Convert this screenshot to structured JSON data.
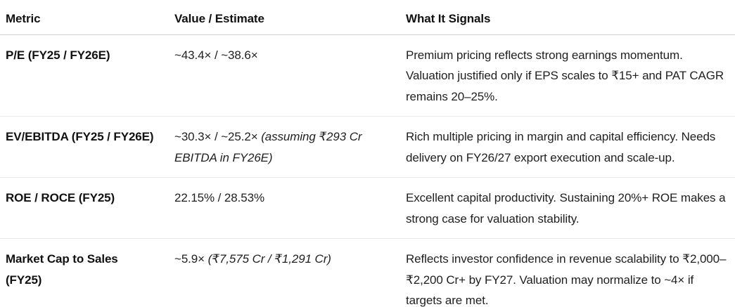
{
  "table": {
    "headers": {
      "metric": "Metric",
      "value": "Value / Estimate",
      "signal": "What It Signals"
    },
    "rows": [
      {
        "metric": "P/E (FY25 / FY26E)",
        "value": "~43.4× / ~38.6×",
        "value_note": "",
        "signal": "Premium pricing reflects strong earnings momentum. Valuation justified only if EPS scales to ₹15+ and PAT CAGR remains 20–25%."
      },
      {
        "metric": "EV/EBITDA (FY25 / FY26E)",
        "value": "~30.3× / ~25.2× ",
        "value_note": "(assuming ₹293 Cr EBITDA in FY26E)",
        "signal": "Rich multiple pricing in margin and capital efficiency. Needs delivery on FY26/27 export execution and scale-up."
      },
      {
        "metric": "ROE / ROCE (FY25)",
        "value": "22.15% / 28.53%",
        "value_note": "",
        "signal": "Excellent capital productivity. Sustaining 20%+ ROE makes a strong case for valuation stability."
      },
      {
        "metric": "Market Cap to Sales\n(FY25)",
        "value": "~5.9× ",
        "value_note": "(₹7,575 Cr / ₹1,291 Cr)",
        "signal": "Reflects investor confidence in revenue scalability to ₹2,000–₹2,200 Cr+ by FY27. Valuation may normalize to ~4× if targets are met."
      }
    ]
  },
  "colors": {
    "background": "#ffffff",
    "text": "#1b1b1b",
    "header_border": "#d0d0d0",
    "row_border": "#e9e9e9"
  }
}
